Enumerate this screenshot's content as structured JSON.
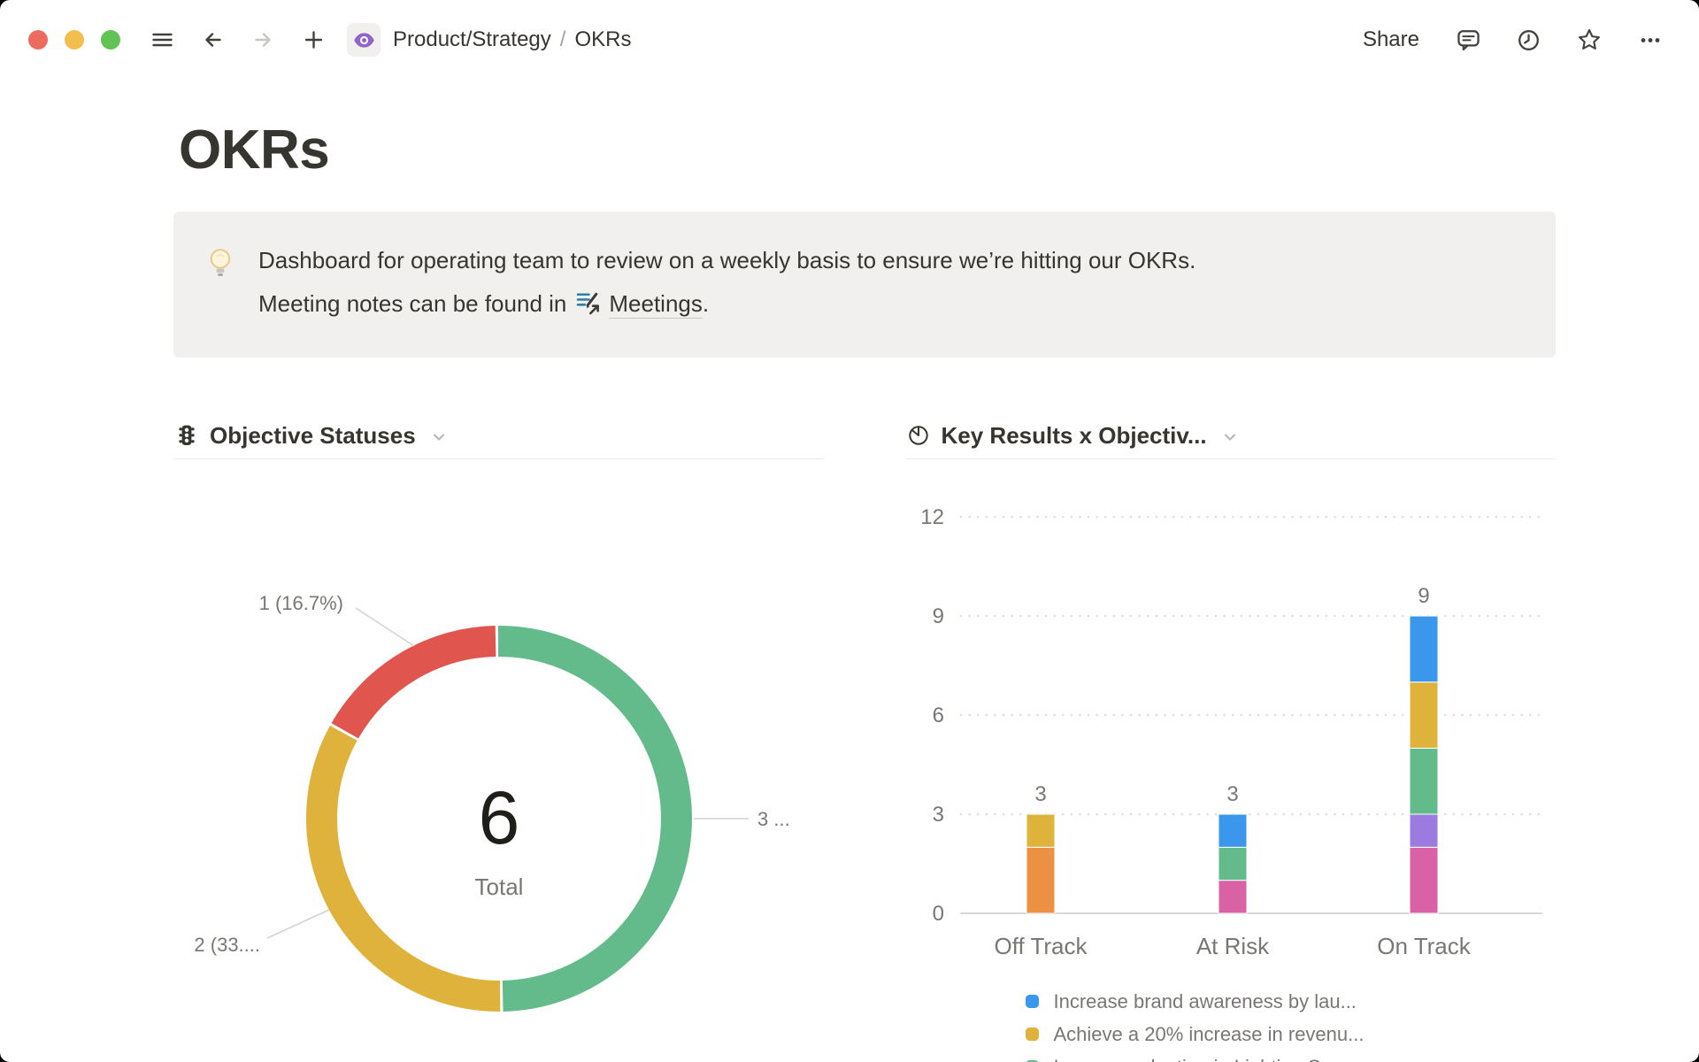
{
  "titlebar": {
    "traffic_lights": {
      "red": "#EC6A5E",
      "yellow": "#F4BE4F",
      "green": "#5FC454"
    },
    "breadcrumb": {
      "parent": "Product/Strategy",
      "separator": "/",
      "current": "OKRs"
    },
    "share_label": "Share"
  },
  "page": {
    "title": "OKRs",
    "callout": {
      "emoji": "lightbulb",
      "text_line1": "Dashboard for operating team to review on a weekly basis to ensure we’re hitting our OKRs.",
      "text_line2_prefix": "Meeting notes can be found in",
      "link_label": "Meetings",
      "text_line2_suffix": "."
    }
  },
  "chart_data": [
    {
      "type": "pie",
      "variant": "donut",
      "title": "Objective Statuses",
      "center_value": "6",
      "center_label": "Total",
      "legend_position": "none",
      "slices": [
        {
          "name": "green-slice",
          "value": 3,
          "fraction": 0.5,
          "color": "#63BA8B",
          "callout_label": "3 ..."
        },
        {
          "name": "yellow-slice",
          "value": 2,
          "fraction": 0.3333,
          "color": "#DFB23C",
          "callout_label": "2 (33...."
        },
        {
          "name": "red-slice",
          "value": 1,
          "fraction": 0.1667,
          "color": "#E0564E",
          "callout_label": "1 (16.7%)"
        }
      ]
    },
    {
      "type": "bar",
      "stacked": true,
      "title": "Key Results x Objectiv...",
      "categories": [
        "Off Track",
        "At Risk",
        "On Track"
      ],
      "totals": [
        3,
        3,
        9
      ],
      "y_ticks": [
        0,
        3,
        6,
        9,
        12
      ],
      "ylim": [
        0,
        12
      ],
      "grid": "dotted-horizontal",
      "legend_position": "bottom",
      "palette": {
        "blue": "#3A97EC",
        "yellow": "#DFB23C",
        "green": "#63BA8B",
        "orange": "#EC9144",
        "pink": "#D962A4",
        "purple": "#9C7BE0"
      },
      "stacks": [
        [
          {
            "color": "orange",
            "value": 2
          },
          {
            "color": "yellow",
            "value": 1
          }
        ],
        [
          {
            "color": "pink",
            "value": 1
          },
          {
            "color": "green",
            "value": 1
          },
          {
            "color": "blue",
            "value": 1
          }
        ],
        [
          {
            "color": "pink",
            "value": 2
          },
          {
            "color": "purple",
            "value": 1
          },
          {
            "color": "green",
            "value": 2
          },
          {
            "color": "yellow",
            "value": 2
          },
          {
            "color": "blue",
            "value": 2
          }
        ]
      ],
      "legend": [
        {
          "color": "blue",
          "label": "Increase brand awareness by lau..."
        },
        {
          "color": "yellow",
          "label": "Achieve a 20% increase in revenu..."
        },
        {
          "color": "green",
          "label": "Increase adoption in Lighting Sea..."
        }
      ]
    }
  ]
}
